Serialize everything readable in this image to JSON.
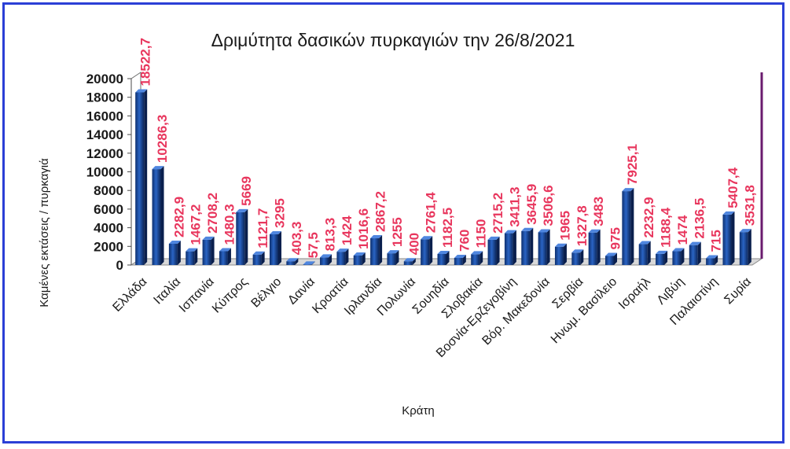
{
  "chart_data": {
    "type": "bar",
    "title": "Δριμύτητα δασικών πυρκαγιών την 26/8/2021",
    "xlabel": "Κράτη",
    "ylabel": "Καμένες εκτάσεις / πυρκαγιά",
    "ylim": [
      0,
      20000
    ],
    "yticks": [
      "0",
      "2000",
      "4000",
      "6000",
      "8000",
      "10000",
      "12000",
      "14000",
      "16000",
      "18000",
      "20000"
    ],
    "grid": false,
    "legend": "none",
    "bar_color": "#1d4fa3",
    "label_color": "#e8365d",
    "values": [
      18522.7,
      10286.3,
      2282.9,
      1467.2,
      2708.2,
      1480.3,
      5669,
      1121.7,
      3295,
      403.3,
      57.5,
      813.3,
      1424,
      1016.6,
      2867.2,
      1255,
      400,
      2761.4,
      1182.5,
      760,
      1150,
      2715.2,
      3411.3,
      3645.9,
      3506.6,
      1965,
      1327.8,
      3483,
      975,
      7925.1,
      2232.9,
      1188.4,
      1474,
      2136.5,
      715,
      5407.4,
      3531.8
    ],
    "value_labels": [
      "18522,7",
      "10286,3",
      "2282,9",
      "1467,2",
      "2708,2",
      "1480,3",
      "5669",
      "1121,7",
      "3295",
      "403,3",
      "57,5",
      "813,3",
      "1424",
      "1016,6",
      "2867,2",
      "1255",
      "400",
      "2761,4",
      "1182,5",
      "760",
      "1150",
      "2715,2",
      "3411,3",
      "3645,9",
      "3506,6",
      "1965",
      "1327,8",
      "3483",
      "975",
      "7925,1",
      "2232,9",
      "1188,4",
      "1474",
      "2136,5",
      "715",
      "5407,4",
      "3531,8"
    ],
    "category_labels": [
      {
        "index": 0,
        "label": "Ελλάδα"
      },
      {
        "index": 2,
        "label": "Ιταλία"
      },
      {
        "index": 4,
        "label": "Ισπανία"
      },
      {
        "index": 6,
        "label": "Κύπρος"
      },
      {
        "index": 8,
        "label": "Βέλγιο"
      },
      {
        "index": 10,
        "label": "Δανία"
      },
      {
        "index": 12,
        "label": "Κροατία"
      },
      {
        "index": 14,
        "label": "Ιρλανδία"
      },
      {
        "index": 16,
        "label": "Πολωνία"
      },
      {
        "index": 18,
        "label": "Σουηδία"
      },
      {
        "index": 20,
        "label": "Σλοβακία"
      },
      {
        "index": 22,
        "label": "Βοσνία-Ερζεγοβίνη"
      },
      {
        "index": 24,
        "label": "Βόρ. Μακεδονία"
      },
      {
        "index": 26,
        "label": "Σερβία"
      },
      {
        "index": 28,
        "label": "Ηνωμ. Βασίλειο"
      },
      {
        "index": 30,
        "label": "Ισραήλ"
      },
      {
        "index": 32,
        "label": "Λιβύη"
      },
      {
        "index": 34,
        "label": "Παλαιστίνη"
      },
      {
        "index": 36,
        "label": "Συρία"
      }
    ]
  }
}
